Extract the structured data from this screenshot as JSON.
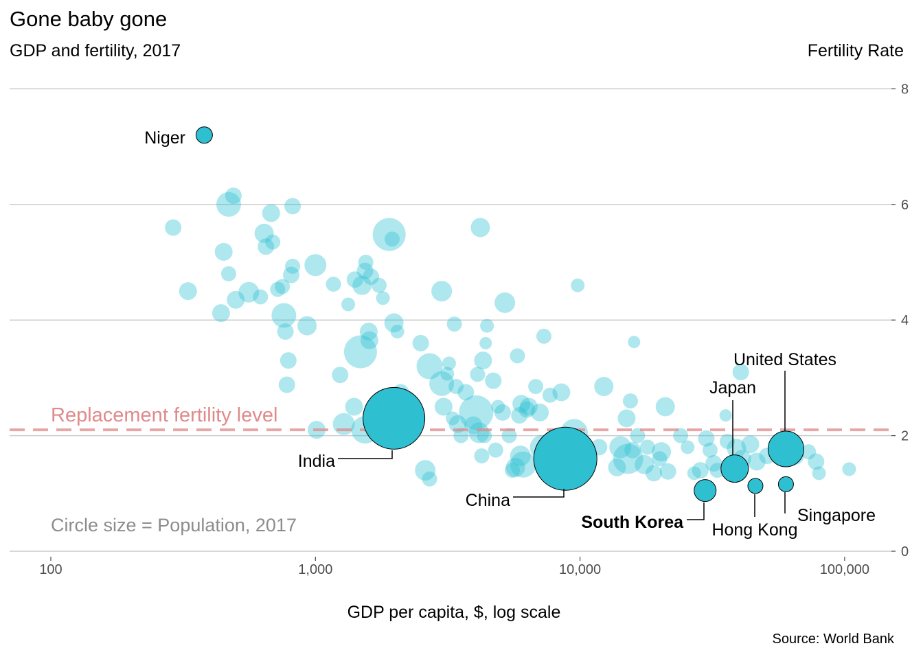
{
  "chart_data": {
    "type": "scatter",
    "title": "Gone baby gone",
    "subtitle": "GDP and fertility, 2017",
    "xlabel": "GDP per capita, $, log scale",
    "ylabel": "Fertility Rate",
    "caption": "Source: World Bank",
    "x_scale": "log10",
    "xlim": [
      70,
      160000
    ],
    "ylim": [
      0,
      8
    ],
    "x_ticks": [
      100,
      1000,
      10000,
      100000
    ],
    "x_tick_labels": [
      "100",
      "1,000",
      "10,000",
      "100,000"
    ],
    "y_ticks": [
      0,
      2,
      4,
      6,
      8
    ],
    "y_tick_labels": [
      "0",
      "2",
      "4",
      "6",
      "8"
    ],
    "grid": "horizontal",
    "reference_line": {
      "y": 2.1,
      "label": "Replacement fertility level",
      "color": "#e08a8a",
      "style": "dashed"
    },
    "size_note": "Circle size = Population, 2017",
    "colors": {
      "point": "#2ebfd1",
      "point_faded_opacity": 0.38,
      "reference": "#e08a8a",
      "size_note": "#8c8c8c"
    },
    "highlighted": [
      {
        "name": "Niger",
        "x": 380,
        "y": 7.2,
        "r": 12
      },
      {
        "name": "India",
        "x": 1980,
        "y": 2.3,
        "r": 45
      },
      {
        "name": "China",
        "x": 8800,
        "y": 1.6,
        "r": 46,
        "bold": false
      },
      {
        "name": "South Korea",
        "x": 29700,
        "y": 1.05,
        "r": 16,
        "bold": true
      },
      {
        "name": "Hong Kong",
        "x": 46000,
        "y": 1.13,
        "r": 11
      },
      {
        "name": "Japan",
        "x": 38400,
        "y": 1.43,
        "r": 20
      },
      {
        "name": "United States",
        "x": 60000,
        "y": 1.77,
        "r": 26
      },
      {
        "name": "Singapore",
        "x": 60000,
        "y": 1.16,
        "r": 11
      }
    ],
    "background_points": [
      [
        290,
        5.6,
        12
      ],
      [
        330,
        4.5,
        13
      ],
      [
        440,
        4.12,
        13
      ],
      [
        450,
        5.18,
        13
      ],
      [
        470,
        6.0,
        18
      ],
      [
        490,
        6.15,
        12
      ],
      [
        470,
        4.8,
        11
      ],
      [
        500,
        4.35,
        13
      ],
      [
        560,
        4.48,
        15
      ],
      [
        620,
        4.4,
        11
      ],
      [
        640,
        5.5,
        14
      ],
      [
        650,
        5.27,
        12
      ],
      [
        680,
        5.85,
        13
      ],
      [
        690,
        5.35,
        11
      ],
      [
        720,
        4.53,
        11
      ],
      [
        750,
        4.58,
        11
      ],
      [
        760,
        4.08,
        18
      ],
      [
        770,
        3.8,
        12
      ],
      [
        780,
        2.88,
        12
      ],
      [
        790,
        3.3,
        12
      ],
      [
        810,
        4.78,
        12
      ],
      [
        820,
        4.93,
        11
      ],
      [
        820,
        5.97,
        12
      ],
      [
        930,
        3.9,
        14
      ],
      [
        1000,
        4.95,
        16
      ],
      [
        1010,
        2.1,
        13
      ],
      [
        1170,
        4.62,
        11
      ],
      [
        1240,
        3.05,
        12
      ],
      [
        1280,
        2.2,
        16
      ],
      [
        1330,
        4.27,
        10
      ],
      [
        1400,
        2.5,
        13
      ],
      [
        1410,
        4.7,
        12
      ],
      [
        1480,
        3.45,
        24
      ],
      [
        1500,
        4.6,
        14
      ],
      [
        1540,
        2.1,
        20
      ],
      [
        1540,
        4.85,
        12
      ],
      [
        1550,
        5.0,
        11
      ],
      [
        1590,
        3.8,
        13
      ],
      [
        1600,
        3.65,
        13
      ],
      [
        1620,
        4.75,
        12
      ],
      [
        1740,
        4.6,
        11
      ],
      [
        1800,
        4.38,
        10
      ],
      [
        1900,
        5.48,
        24
      ],
      [
        1950,
        5.4,
        11
      ],
      [
        1980,
        3.95,
        14
      ],
      [
        2040,
        3.8,
        10
      ],
      [
        2100,
        2.75,
        12
      ],
      [
        2500,
        3.6,
        12
      ],
      [
        2600,
        1.4,
        15
      ],
      [
        2700,
        1.25,
        11
      ],
      [
        2700,
        3.2,
        19
      ],
      [
        3000,
        2.9,
        18
      ],
      [
        3000,
        4.5,
        15
      ],
      [
        3050,
        2.5,
        13
      ],
      [
        3150,
        3.07,
        10
      ],
      [
        3200,
        3.25,
        10
      ],
      [
        3300,
        2.3,
        10
      ],
      [
        3350,
        3.93,
        11
      ],
      [
        3400,
        2.85,
        11
      ],
      [
        3450,
        2.2,
        13
      ],
      [
        3550,
        2.0,
        11
      ],
      [
        3700,
        2.75,
        12
      ],
      [
        3950,
        2.18,
        13
      ],
      [
        4050,
        2.4,
        25
      ],
      [
        4100,
        3.06,
        11
      ],
      [
        4150,
        2.05,
        15
      ],
      [
        4200,
        5.6,
        14
      ],
      [
        4250,
        1.65,
        11
      ],
      [
        4300,
        3.3,
        13
      ],
      [
        4350,
        2.0,
        11
      ],
      [
        4400,
        3.6,
        9
      ],
      [
        4450,
        3.9,
        10
      ],
      [
        4700,
        2.95,
        12
      ],
      [
        4800,
        1.75,
        11
      ],
      [
        4900,
        2.5,
        10
      ],
      [
        5100,
        2.4,
        12
      ],
      [
        5200,
        4.3,
        15
      ],
      [
        5400,
        2.0,
        11
      ],
      [
        5550,
        1.4,
        11
      ],
      [
        5700,
        1.45,
        14
      ],
      [
        5800,
        3.38,
        11
      ],
      [
        5900,
        2.35,
        12
      ],
      [
        5950,
        1.65,
        15
      ],
      [
        6000,
        2.55,
        13
      ],
      [
        6100,
        1.5,
        19
      ],
      [
        6300,
        2.45,
        12
      ],
      [
        6400,
        2.5,
        13
      ],
      [
        6800,
        2.85,
        11
      ],
      [
        7050,
        2.4,
        13
      ],
      [
        7200,
        1.8,
        18
      ],
      [
        7300,
        3.72,
        11
      ],
      [
        7700,
        2.7,
        11
      ],
      [
        8500,
        2.75,
        13
      ],
      [
        9500,
        2.05,
        20
      ],
      [
        9800,
        4.6,
        10
      ],
      [
        11800,
        1.8,
        12
      ],
      [
        12300,
        2.85,
        14
      ],
      [
        13800,
        1.45,
        13
      ],
      [
        14200,
        1.8,
        16
      ],
      [
        15000,
        2.3,
        13
      ],
      [
        15200,
        1.6,
        22
      ],
      [
        15500,
        2.6,
        11
      ],
      [
        15800,
        1.75,
        12
      ],
      [
        16000,
        3.62,
        9
      ],
      [
        16500,
        2.0,
        11
      ],
      [
        17500,
        1.5,
        14
      ],
      [
        18000,
        1.8,
        11
      ],
      [
        19000,
        1.35,
        12
      ],
      [
        20000,
        1.6,
        11
      ],
      [
        20300,
        1.72,
        14
      ],
      [
        21000,
        2.5,
        14
      ],
      [
        21500,
        1.38,
        12
      ],
      [
        24000,
        2.0,
        11
      ],
      [
        25500,
        1.8,
        10
      ],
      [
        27000,
        1.35,
        10
      ],
      [
        28500,
        1.4,
        12
      ],
      [
        30000,
        1.95,
        12
      ],
      [
        31000,
        1.75,
        11
      ],
      [
        32000,
        1.52,
        12
      ],
      [
        33000,
        1.4,
        11
      ],
      [
        35500,
        2.35,
        9
      ],
      [
        36000,
        1.9,
        11
      ],
      [
        39000,
        1.78,
        14
      ],
      [
        40500,
        3.1,
        12
      ],
      [
        41000,
        1.6,
        13
      ],
      [
        44000,
        1.85,
        13
      ],
      [
        46500,
        1.55,
        13
      ],
      [
        51000,
        1.65,
        12
      ],
      [
        56000,
        1.82,
        12
      ],
      [
        65000,
        1.65,
        13
      ],
      [
        73000,
        1.72,
        11
      ],
      [
        78000,
        1.55,
        12
      ],
      [
        80000,
        1.35,
        10
      ],
      [
        104000,
        1.42,
        10
      ]
    ]
  }
}
